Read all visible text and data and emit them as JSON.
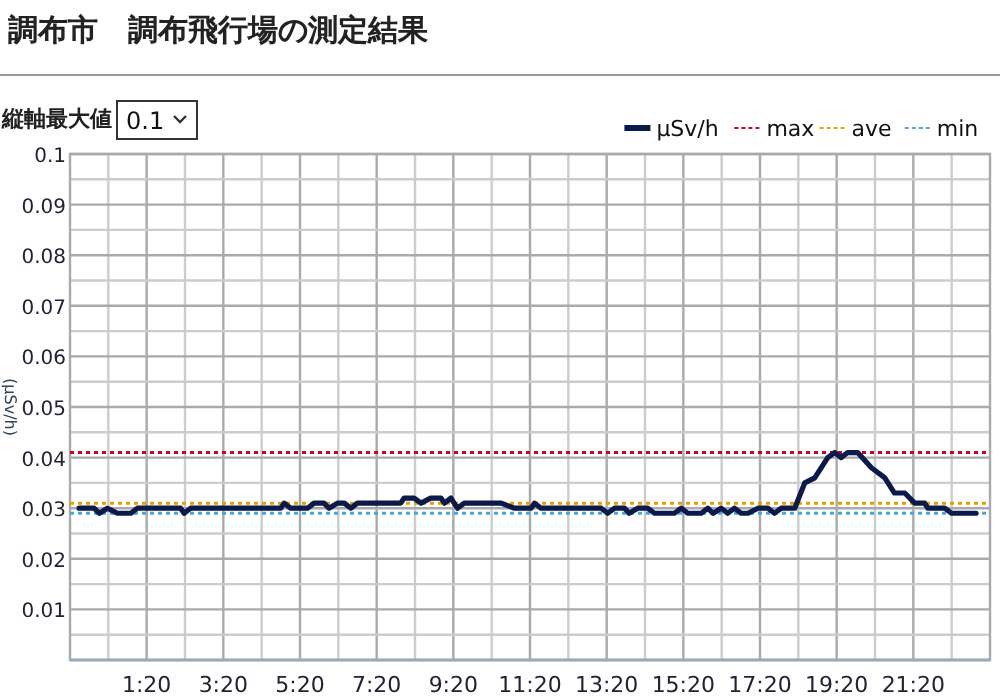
{
  "chart_data": {
    "type": "line",
    "title": "調布市　調布飛行場の測定結果",
    "ylabel": "(μSv/h)",
    "annotations": [
      "縦軸最大値",
      "0.1"
    ],
    "xlim": [
      -0.667,
      23.333
    ],
    "ylim": [
      0,
      0.1
    ],
    "xticks": [
      {
        "value": 0.333,
        "label": null
      },
      {
        "value": 1.333,
        "label": "1:20"
      },
      {
        "value": 2.333,
        "label": null
      },
      {
        "value": 3.333,
        "label": "3:20"
      },
      {
        "value": 4.333,
        "label": null
      },
      {
        "value": 5.333,
        "label": "5:20"
      },
      {
        "value": 6.333,
        "label": null
      },
      {
        "value": 7.333,
        "label": "7:20"
      },
      {
        "value": 8.333,
        "label": null
      },
      {
        "value": 9.333,
        "label": "9:20"
      },
      {
        "value": 10.333,
        "label": null
      },
      {
        "value": 11.333,
        "label": "11:20"
      },
      {
        "value": 12.333,
        "label": null
      },
      {
        "value": 13.333,
        "label": "13:20"
      },
      {
        "value": 14.333,
        "label": null
      },
      {
        "value": 15.333,
        "label": "15:20"
      },
      {
        "value": 16.333,
        "label": null
      },
      {
        "value": 17.333,
        "label": "17:20"
      },
      {
        "value": 18.333,
        "label": null
      },
      {
        "value": 19.333,
        "label": "19:20"
      },
      {
        "value": 20.333,
        "label": null
      },
      {
        "value": 21.333,
        "label": "21:20"
      },
      {
        "value": 22.333,
        "label": null
      }
    ],
    "yticks": [
      {
        "value": 0.005,
        "label": null
      },
      0.01,
      {
        "value": 0.015,
        "label": null
      },
      0.02,
      {
        "value": 0.025,
        "label": null
      },
      0.03,
      {
        "value": 0.035,
        "label": null
      },
      0.04,
      {
        "value": 0.045,
        "label": null
      },
      0.05,
      {
        "value": 0.055,
        "label": null
      },
      0.06,
      {
        "value": 0.065,
        "label": null
      },
      0.07,
      {
        "value": 0.075,
        "label": null
      },
      0.08,
      {
        "value": 0.085,
        "label": null
      },
      0.09,
      {
        "value": 0.095,
        "label": null
      },
      0.1
    ],
    "grid": true,
    "legend": "top right",
    "marker": "none",
    "line_style": "solid",
    "series": [
      {
        "name": "μSv/h",
        "color": "#0b1a4a",
        "x": [
          -0.43,
          -0.04,
          0.1,
          0.31,
          0.57,
          0.92,
          1.09,
          2.22,
          2.31,
          2.48,
          4.83,
          4.92,
          5.09,
          5.53,
          5.7,
          5.96,
          6.09,
          6.31,
          6.49,
          6.66,
          6.83,
          7.96,
          8.05,
          8.31,
          8.49,
          8.74,
          9.01,
          9.1,
          9.27,
          9.44,
          9.62,
          10.4,
          10.58,
          10.93,
          11.36,
          11.45,
          11.62,
          13.19,
          13.36,
          13.54,
          13.8,
          13.92,
          14.14,
          14.4,
          14.58,
          15.1,
          15.28,
          15.45,
          15.8,
          15.97,
          16.11,
          16.32,
          16.49,
          16.67,
          16.84,
          17.02,
          17.28,
          17.54,
          17.71,
          17.89,
          18.24,
          18.5,
          18.76,
          19.1,
          19.28,
          19.45,
          19.62,
          19.88,
          20.24,
          20.59,
          20.84,
          21.11,
          21.37,
          21.63,
          21.71,
          22.15,
          22.33,
          22.97
        ],
        "values": [
          0.03,
          0.03,
          0.029,
          0.03,
          0.029,
          0.029,
          0.03,
          0.03,
          0.029,
          0.03,
          0.03,
          0.031,
          0.03,
          0.03,
          0.031,
          0.031,
          0.03,
          0.031,
          0.031,
          0.03,
          0.031,
          0.031,
          0.032,
          0.032,
          0.031,
          0.032,
          0.032,
          0.031,
          0.032,
          0.03,
          0.031,
          0.031,
          0.031,
          0.03,
          0.03,
          0.031,
          0.03,
          0.03,
          0.029,
          0.03,
          0.03,
          0.029,
          0.03,
          0.03,
          0.029,
          0.029,
          0.03,
          0.029,
          0.029,
          0.03,
          0.029,
          0.03,
          0.029,
          0.03,
          0.029,
          0.029,
          0.03,
          0.03,
          0.029,
          0.03,
          0.03,
          0.035,
          0.036,
          0.04,
          0.041,
          0.04,
          0.041,
          0.041,
          0.038,
          0.036,
          0.033,
          0.033,
          0.031,
          0.031,
          0.03,
          0.03,
          0.029,
          0.029
        ]
      }
    ],
    "ref_lines": [
      {
        "axis": "y",
        "value": 0.041,
        "label": "max",
        "color": "#d0021b",
        "line_style": "dotted"
      },
      {
        "axis": "y",
        "value": 0.031,
        "label": "ave",
        "color": "#e8a000",
        "line_style": "dotted"
      },
      {
        "axis": "y",
        "value": 0.029,
        "label": "min",
        "color": "#4aa8d8",
        "line_style": "dotted"
      }
    ]
  }
}
